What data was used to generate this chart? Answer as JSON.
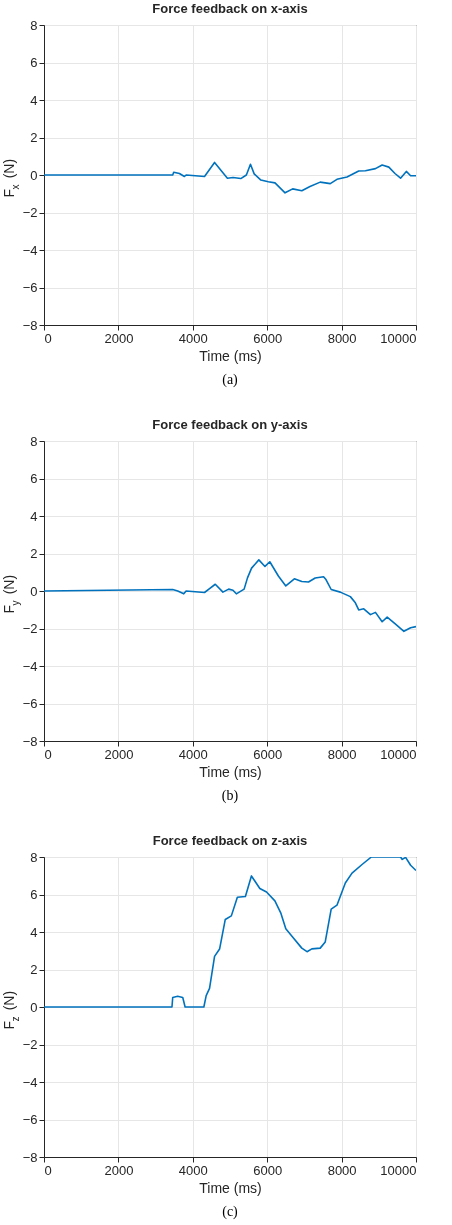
{
  "chart_data": [
    {
      "type": "line",
      "title": "Force feedback on x-axis",
      "xlabel": "Time (ms)",
      "ylabel": "F$_{x}$ (N)",
      "annotations": [
        "(a)"
      ],
      "xlim": [
        0,
        10000
      ],
      "ylim": [
        -8,
        8
      ],
      "xticks": [
        0,
        2000,
        4000,
        6000,
        8000,
        10000
      ],
      "yticks": [
        -8,
        -6,
        -4,
        -2,
        0,
        2,
        4,
        6,
        8
      ],
      "grid": true,
      "x": [
        0,
        3460,
        3487,
        3640,
        3775,
        3820,
        4315,
        4585,
        4930,
        5080,
        5290,
        5440,
        5550,
        5650,
        5830,
        6030,
        6210,
        6480,
        6685,
        6930,
        7150,
        7425,
        7695,
        7875,
        8145,
        8460,
        8640,
        8910,
        9090,
        9270,
        9435,
        9585,
        9740,
        9855,
        10000
      ],
      "series": [
        {
          "color": "#0072bd",
          "values": [
            0,
            0,
            0.15,
            0.08,
            -0.08,
            0,
            -0.08,
            0.67,
            -0.17,
            -0.13,
            -0.19,
            0,
            0.57,
            0.06,
            -0.27,
            -0.36,
            -0.42,
            -0.95,
            -0.74,
            -0.84,
            -0.61,
            -0.38,
            -0.46,
            -0.23,
            -0.11,
            0.21,
            0.23,
            0.34,
            0.53,
            0.42,
            0.08,
            -0.17,
            0.19,
            -0.04,
            -0.04
          ]
        }
      ]
    },
    {
      "type": "line",
      "title": "Force feedback on y-axis",
      "xlabel": "Time (ms)",
      "ylabel": "F$_{y}$ (N)",
      "annotations": [
        "(b)"
      ],
      "xlim": [
        0,
        10000
      ],
      "ylim": [
        -8,
        8
      ],
      "xticks": [
        0,
        2000,
        4000,
        6000,
        8000,
        10000
      ],
      "yticks": [
        -8,
        -6,
        -4,
        -2,
        0,
        2,
        4,
        6,
        8
      ],
      "grid": true,
      "x": [
        0,
        3460,
        3595,
        3757,
        3820,
        4315,
        4450,
        4604,
        4810,
        4964,
        5080,
        5170,
        5380,
        5470,
        5580,
        5775,
        5940,
        6070,
        6300,
        6500,
        6730,
        6930,
        7110,
        7290,
        7515,
        7580,
        7720,
        7965,
        8235,
        8370,
        8460,
        8595,
        8775,
        8910,
        9090,
        9225,
        9450,
        9675,
        9855,
        10000
      ],
      "series": [
        {
          "color": "#0072bd",
          "values": [
            0,
            0.08,
            0,
            -0.15,
            0,
            -0.08,
            0.13,
            0.36,
            -0.06,
            0.1,
            0.04,
            -0.15,
            0.1,
            0.7,
            1.22,
            1.66,
            1.31,
            1.56,
            0.8,
            0.27,
            0.65,
            0.51,
            0.48,
            0.69,
            0.76,
            0.61,
            0.08,
            -0.06,
            -0.3,
            -0.63,
            -1.01,
            -0.95,
            -1.26,
            -1.14,
            -1.64,
            -1.39,
            -1.77,
            -2.15,
            -1.96,
            -1.9
          ]
        }
      ]
    },
    {
      "type": "line",
      "title": "Force feedback on z-axis",
      "xlabel": "Time (ms)",
      "ylabel": "F$_{z}$ (N)",
      "annotations": [
        "(c)"
      ],
      "xlim": [
        0,
        10000
      ],
      "ylim": [
        -8,
        8
      ],
      "xticks": [
        0,
        2000,
        4000,
        6000,
        8000,
        10000
      ],
      "yticks": [
        -8,
        -6,
        -4,
        -2,
        0,
        2,
        4,
        6,
        8
      ],
      "grid": true,
      "x": [
        0,
        3440,
        3460,
        3595,
        3730,
        3793,
        4297,
        4360,
        4450,
        4585,
        4720,
        4873,
        5036,
        5198,
        5414,
        5576,
        5802,
        5982,
        6207,
        6370,
        6500,
        6660,
        6930,
        7070,
        7200,
        7425,
        7560,
        7720,
        7875,
        8100,
        8280,
        8550,
        8800,
        9585,
        9630,
        9720,
        9855,
        10000
      ],
      "series": [
        {
          "color": "#0072bd",
          "values": [
            0,
            0,
            0.51,
            0.57,
            0.51,
            0,
            0,
            0.61,
            0.99,
            2.7,
            3.09,
            4.67,
            4.86,
            5.85,
            5.89,
            6.99,
            6.32,
            6.13,
            5.66,
            4.99,
            4.17,
            3.79,
            3.14,
            2.95,
            3.1,
            3.14,
            3.47,
            5.22,
            5.43,
            6.61,
            7.14,
            7.6,
            8.0,
            8.0,
            7.87,
            7.98,
            7.56,
            7.28
          ]
        }
      ]
    }
  ]
}
